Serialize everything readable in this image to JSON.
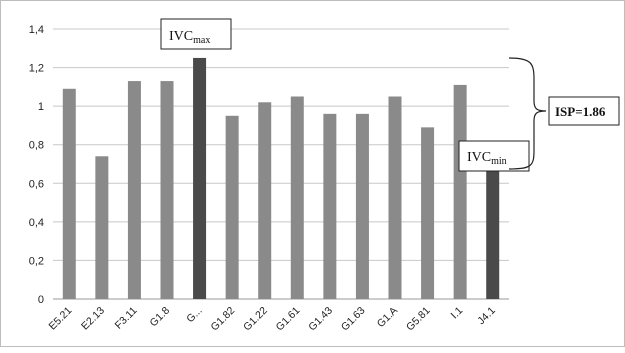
{
  "chart_data": {
    "type": "bar",
    "categories": [
      "E5.21",
      "E2.13",
      "F3.11",
      "G1.8",
      "G...",
      "G1.82",
      "G1.22",
      "G1.61",
      "G1.43",
      "G1.63",
      "G1.A",
      "G5.81",
      "I.1",
      "J4.1"
    ],
    "values": [
      1.09,
      0.74,
      1.13,
      1.13,
      1.25,
      0.95,
      1.02,
      1.05,
      0.96,
      0.96,
      1.05,
      0.89,
      1.11,
      0.67
    ],
    "highlight_indices": [
      4,
      13
    ],
    "yticks": [
      "0",
      "0,2",
      "0,4",
      "0,6",
      "0,8",
      "1",
      "1,2",
      "1,4"
    ],
    "ylim": [
      0,
      1.4
    ],
    "grid": true,
    "colors": {
      "bar": "#8a8a8a",
      "bar_highlight": "#4a4a4a"
    },
    "annotations": {
      "max_label": {
        "main": "IVC",
        "sub": "max"
      },
      "min_label": {
        "main": "IVC",
        "sub": "min"
      },
      "range_label": "ISP=1.86"
    }
  }
}
